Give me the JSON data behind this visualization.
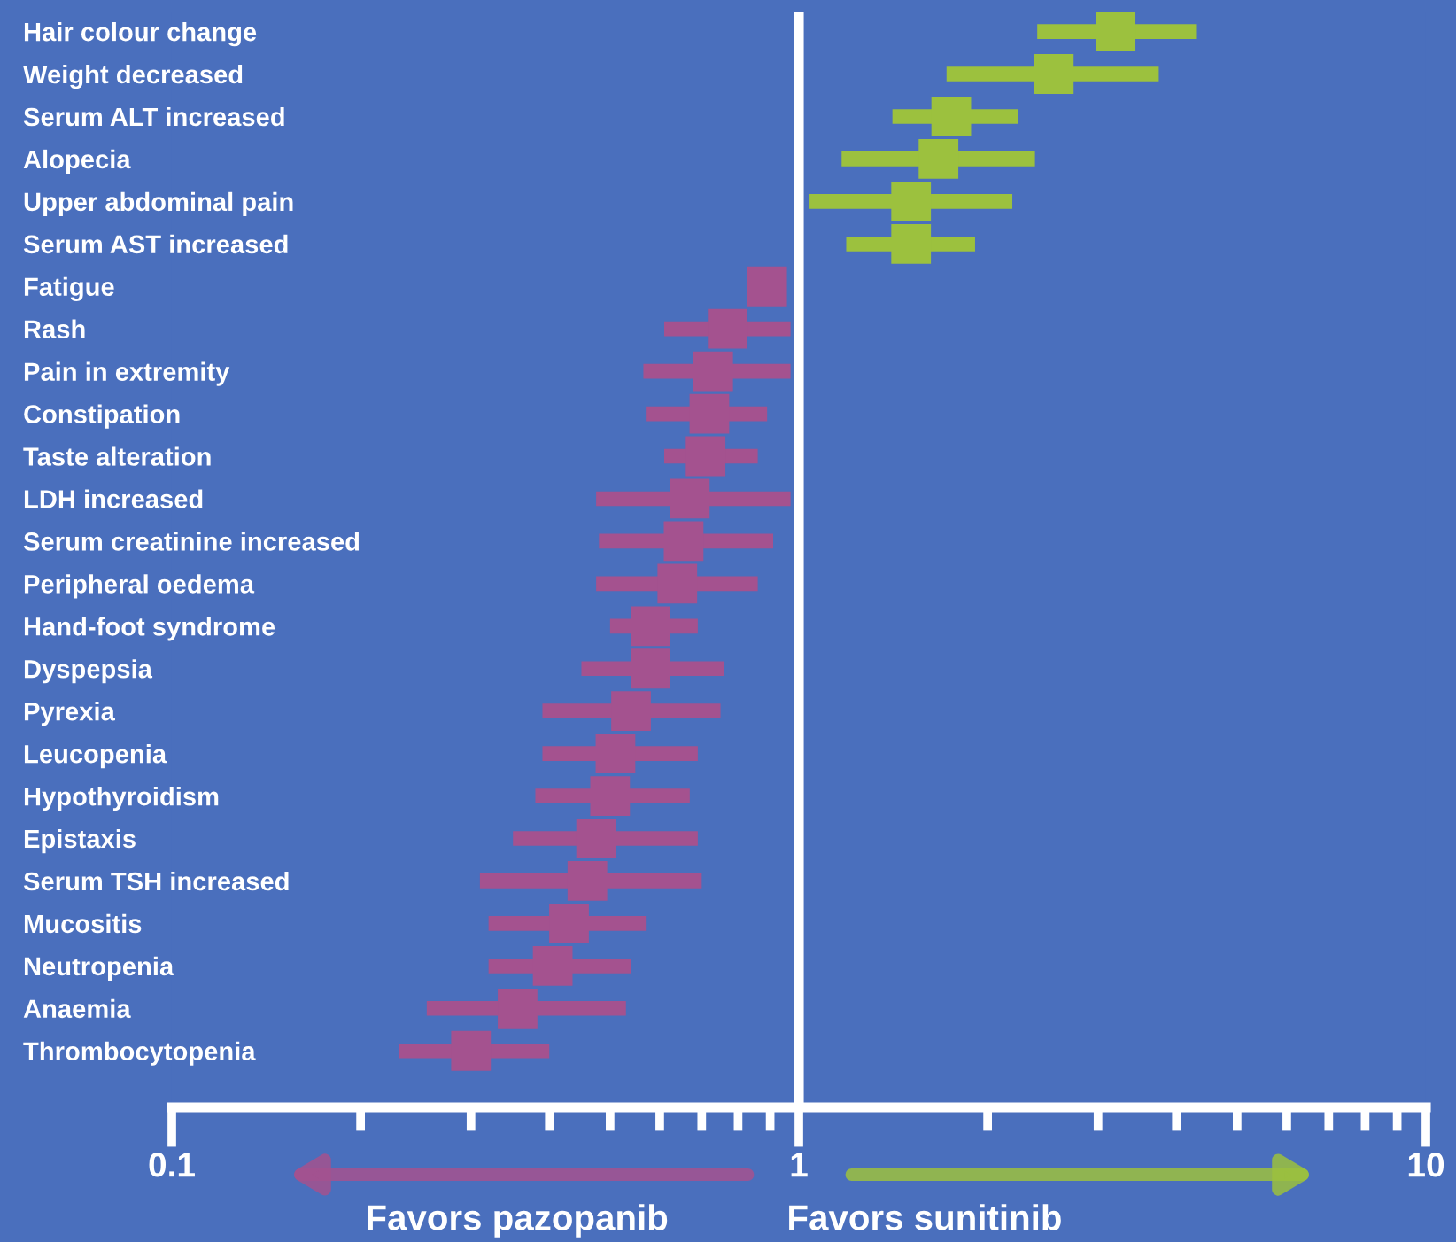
{
  "chart_data": {
    "type": "scatter",
    "orientation": "horizontal",
    "categories": [
      "Hair colour change",
      "Weight decreased",
      "Serum ALT increased",
      "Alopecia",
      "Upper abdominal pain",
      "Serum AST increased",
      "Fatigue",
      "Rash",
      "Pain in extremity",
      "Constipation",
      "Taste alteration",
      "LDH increased",
      "Serum creatinine increased",
      "Peripheral oedema",
      "Hand-foot syndrome",
      "Dyspepsia",
      "Pyrexia",
      "Leucopenia",
      "Hypothyroidism",
      "Epistaxis",
      "Serum TSH increased",
      "Mucositis",
      "Neutropenia",
      "Anaemia",
      "Thrombocytopenia"
    ],
    "series": [
      {
        "color": "#9cc13e",
        "values": [
          3.2,
          2.55,
          1.75,
          1.67,
          1.51,
          1.51,
          null,
          null,
          null,
          null,
          null,
          null,
          null,
          null,
          null,
          null,
          null,
          null,
          null,
          null,
          null,
          null,
          null,
          null,
          null
        ],
        "errors": [
          [
            2.4,
            4.3
          ],
          [
            1.72,
            3.75
          ],
          [
            1.41,
            2.24
          ],
          [
            1.17,
            2.38
          ],
          [
            1.04,
            2.19
          ],
          [
            1.19,
            1.91
          ],
          null,
          null,
          null,
          null,
          null,
          null,
          null,
          null,
          null,
          null,
          null,
          null,
          null,
          null,
          null,
          null,
          null,
          null,
          null
        ]
      },
      {
        "color": "#a4528f",
        "values": [
          null,
          null,
          null,
          null,
          null,
          null,
          0.89,
          0.77,
          0.73,
          0.72,
          0.71,
          0.67,
          0.655,
          0.64,
          0.58,
          0.58,
          0.54,
          0.51,
          0.5,
          0.475,
          0.46,
          0.43,
          0.405,
          0.356,
          0.3
        ],
        "errors": [
          null,
          null,
          null,
          null,
          null,
          null,
          [
            0.84,
            0.94
          ],
          [
            0.61,
            0.97
          ],
          [
            0.565,
            0.97
          ],
          [
            0.57,
            0.89
          ],
          [
            0.61,
            0.86
          ],
          [
            0.475,
            0.97
          ],
          [
            0.48,
            0.91
          ],
          [
            0.475,
            0.86
          ],
          [
            0.5,
            0.69
          ],
          [
            0.45,
            0.76
          ],
          [
            0.39,
            0.75
          ],
          [
            0.39,
            0.69
          ],
          [
            0.38,
            0.67
          ],
          [
            0.35,
            0.69
          ],
          [
            0.31,
            0.7
          ],
          [
            0.32,
            0.57
          ],
          [
            0.32,
            0.54
          ],
          [
            0.255,
            0.53
          ],
          [
            0.23,
            0.4
          ]
        ]
      }
    ],
    "log": "x",
    "xlim": [
      0.1,
      10
    ],
    "xticks": [
      0.1,
      {
        "value": 0.2,
        "label": null
      },
      {
        "value": 0.3,
        "label": null
      },
      {
        "value": 0.4,
        "label": null
      },
      {
        "value": 0.5,
        "label": null
      },
      {
        "value": 0.6,
        "label": null
      },
      {
        "value": 0.7,
        "label": null
      },
      {
        "value": 0.8,
        "label": null
      },
      {
        "value": 0.9,
        "label": null
      },
      1,
      {
        "value": 2,
        "label": null
      },
      {
        "value": 3,
        "label": null
      },
      {
        "value": 4,
        "label": null
      },
      {
        "value": 5,
        "label": null
      },
      {
        "value": 6,
        "label": null
      },
      {
        "value": 7,
        "label": null
      },
      {
        "value": 8,
        "label": null
      },
      {
        "value": 9,
        "label": null
      },
      10
    ],
    "marker": "square",
    "grid": false,
    "legend": false,
    "ref_lines": [
      {
        "axis": "x",
        "value": 1,
        "color": "#ffffff"
      }
    ],
    "annotations": [
      "Favors pazopanib",
      "Favors sunitinib"
    ]
  }
}
